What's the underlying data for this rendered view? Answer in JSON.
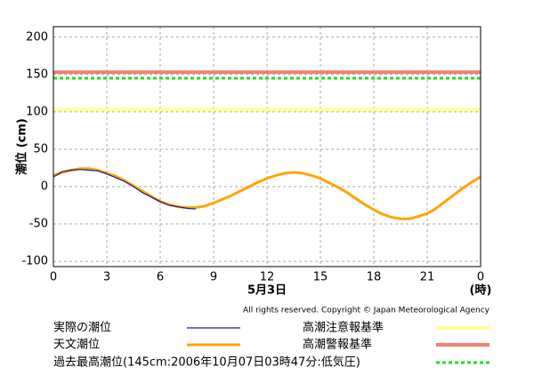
{
  "chart_data": {
    "type": "line",
    "y_label": "潮位 (cm)",
    "x_label": "5月3日",
    "x_unit": "(時)",
    "credit": "All rights reserved. Copyright © Japan Meteorological Agency",
    "xlim": [
      0,
      24
    ],
    "xticks": [
      0,
      3,
      6,
      9,
      12,
      15,
      18,
      21,
      {
        "value": 24,
        "label": "0"
      }
    ],
    "ylim": [
      -107,
      214
    ],
    "yticks": [
      -100,
      -50,
      0,
      50,
      100,
      150,
      200
    ],
    "grid": true,
    "x": [
      0,
      0.5,
      1,
      1.5,
      2,
      2.5,
      3,
      3.5,
      4,
      4.5,
      5,
      5.5,
      6,
      6.5,
      7,
      7.5,
      8,
      8.5,
      9,
      9.5,
      10,
      10.5,
      11,
      11.5,
      12,
      12.5,
      13,
      13.5,
      14,
      14.5,
      15,
      15.5,
      16,
      16.5,
      17,
      17.5,
      18,
      18.5,
      19,
      19.5,
      20,
      20.5,
      21,
      21.5,
      22,
      22.5,
      23,
      23.5,
      24
    ],
    "series": [
      {
        "name": "天文潮位",
        "color": "#ffa500",
        "width": 3,
        "values": [
          15,
          19,
          22,
          24,
          24,
          22,
          18,
          14,
          8,
          1,
          -6,
          -13,
          -20,
          -24,
          -27,
          -28,
          -28,
          -26,
          -22,
          -17,
          -12,
          -6,
          0,
          6,
          11,
          15,
          18,
          19,
          18,
          15,
          11,
          5,
          -1,
          -8,
          -16,
          -24,
          -31,
          -37,
          -41,
          -43,
          -43,
          -40,
          -36,
          -29,
          -20,
          -11,
          -2,
          6,
          13
        ]
      },
      {
        "name": "実際の潮位",
        "color": "#1a1a9c",
        "width": 1.2,
        "values": [
          13,
          20,
          22,
          23,
          22,
          21,
          17,
          12,
          7,
          0,
          -8,
          -14,
          -20,
          -25,
          -27,
          -29,
          -30,
          null,
          null,
          null,
          null,
          null,
          null,
          null,
          null,
          null,
          null,
          null,
          null,
          null,
          null,
          null,
          null,
          null,
          null,
          null,
          null,
          null,
          null,
          null,
          null,
          null,
          null,
          null,
          null,
          null,
          null,
          null,
          null
        ]
      }
    ],
    "reference_lines": [
      {
        "name": "高潮注意報基準",
        "color": "#ffff99",
        "value": 103,
        "width": 4,
        "dashed": false
      },
      {
        "name": "高潮警報基準",
        "color": "#f08070",
        "value": 153,
        "width": 4,
        "dashed": false
      },
      {
        "name": "過去最高潮位(145cm:2006年10月07日03時47分:低気圧)",
        "color": "#22dd22",
        "value": 145,
        "width": 3,
        "dashed": true
      }
    ]
  }
}
